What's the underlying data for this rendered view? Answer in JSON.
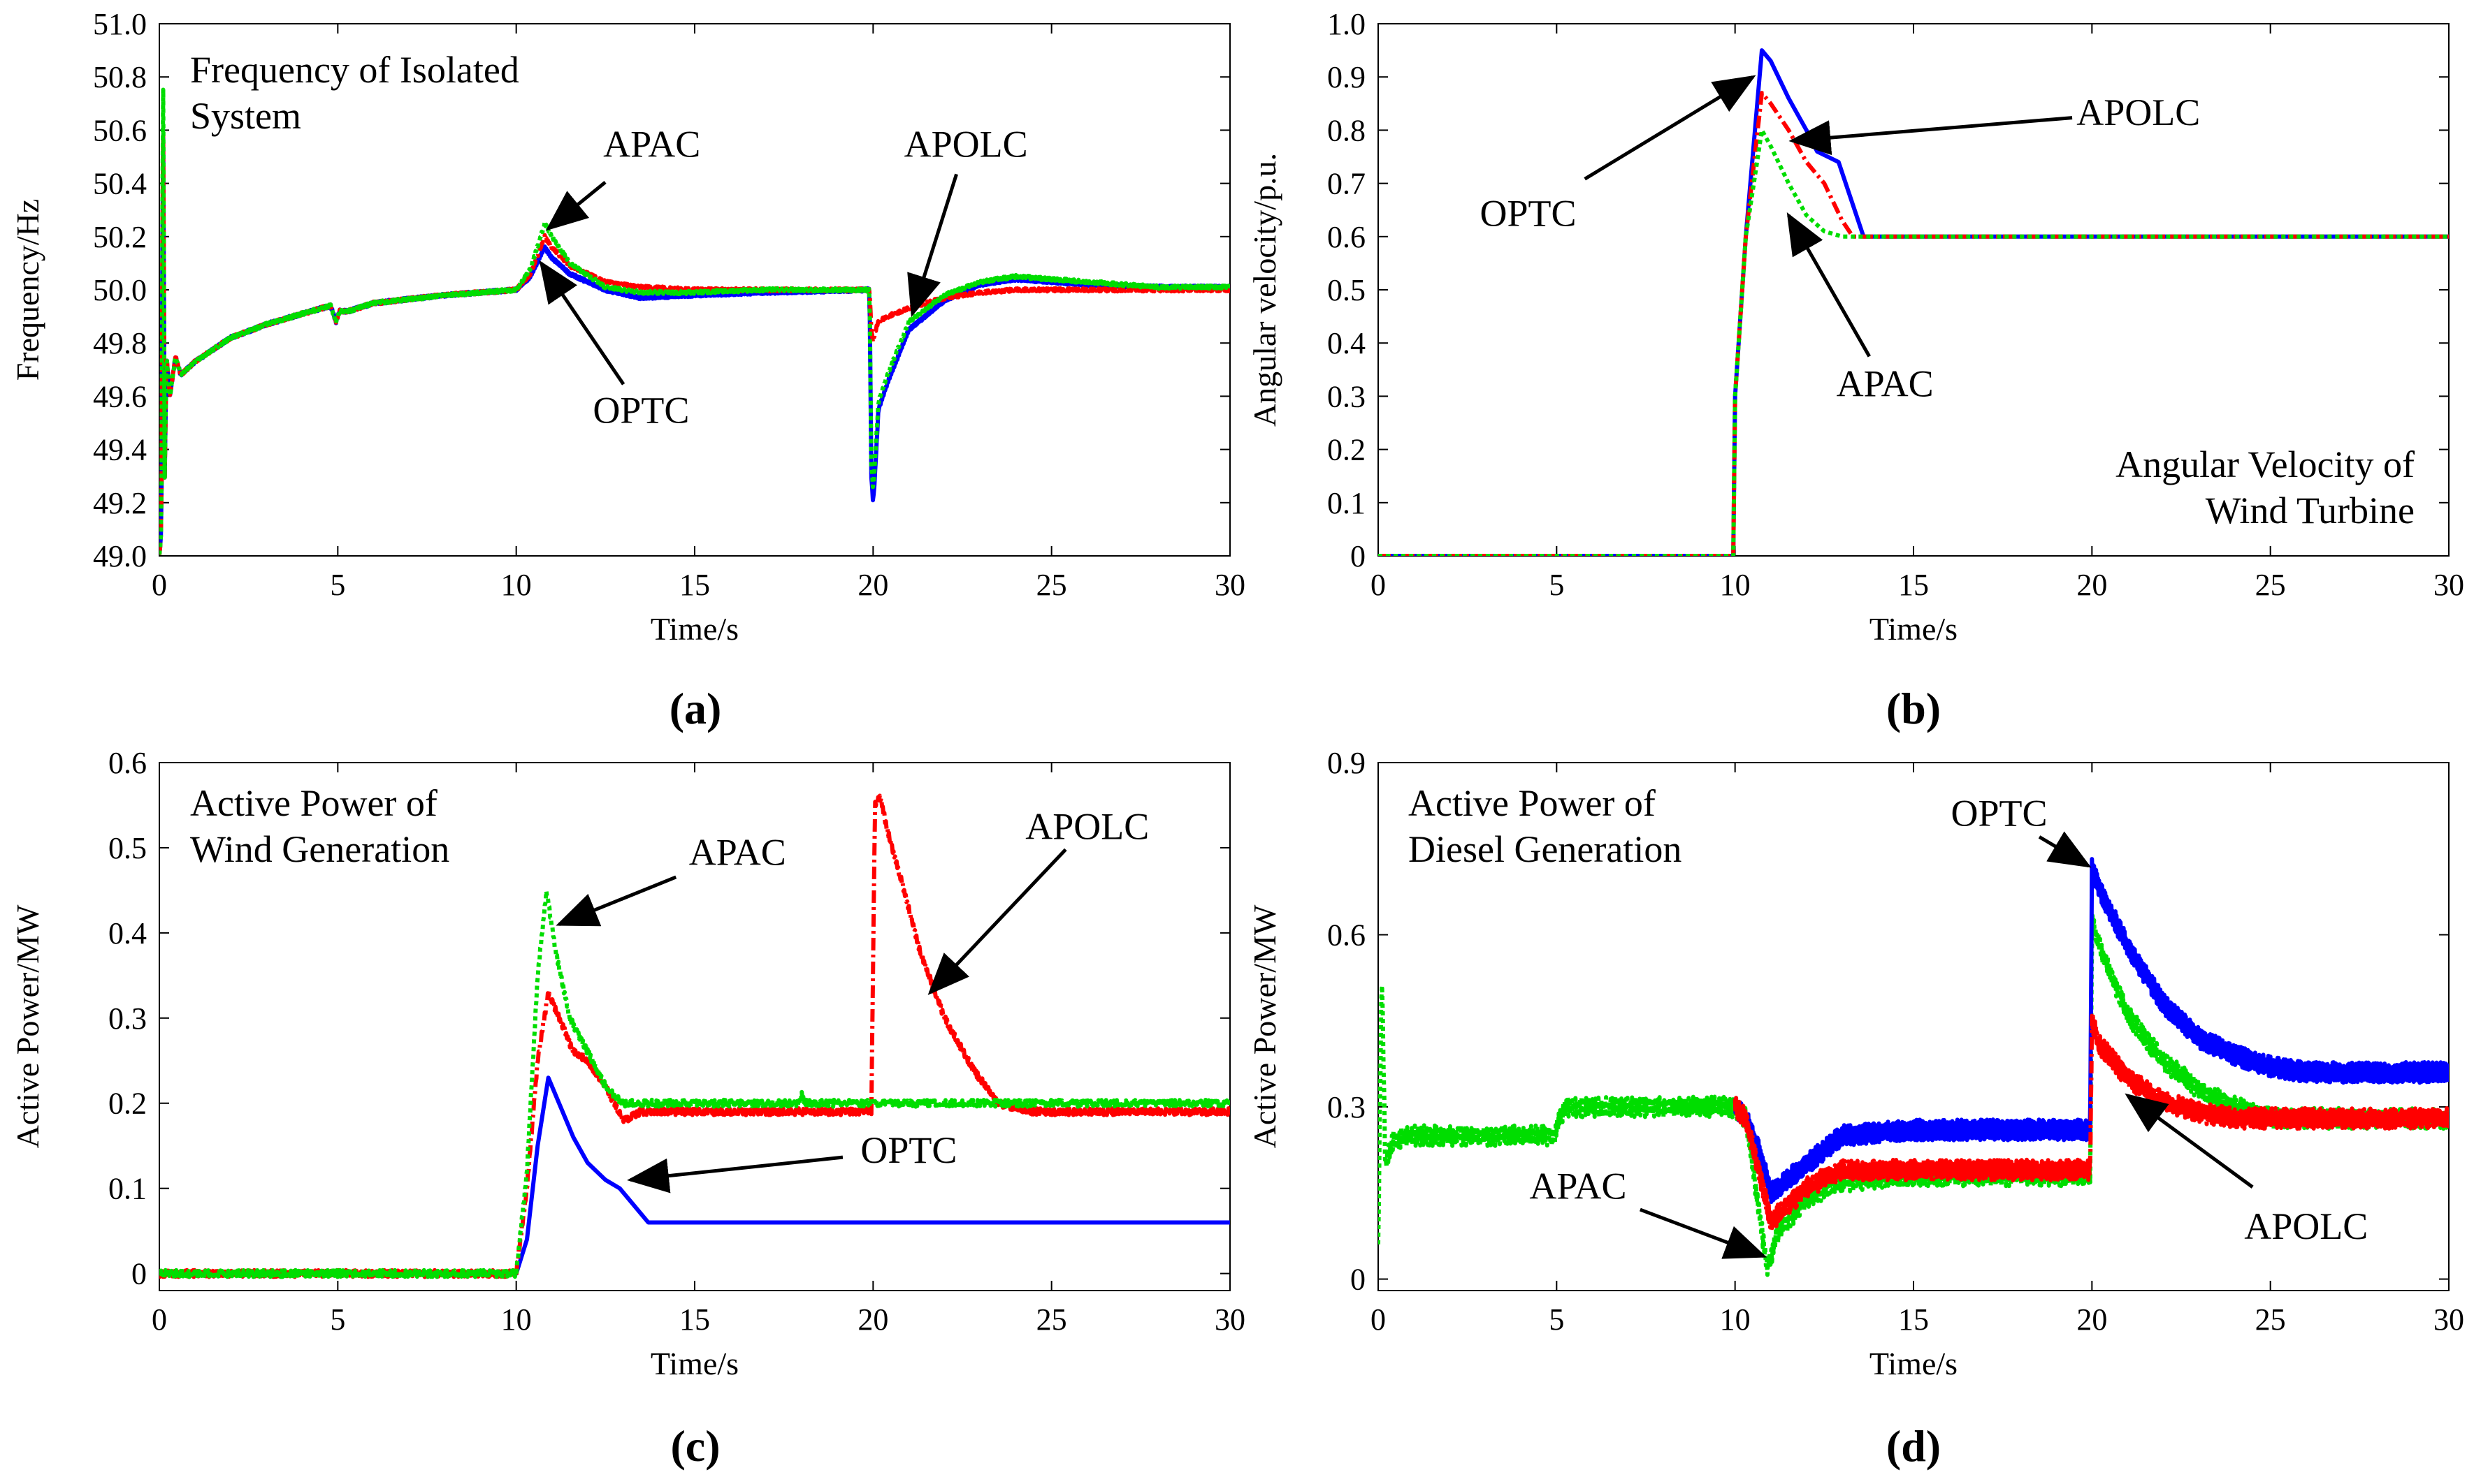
{
  "colors": {
    "OPTC": "#0000ff",
    "APAC": "#00dd00",
    "APOLC": "#ff0000",
    "axis": "#000000"
  },
  "chart_data": [
    {
      "panel_label": "(a)",
      "type": "line",
      "title": "Frequency of Isolated System",
      "xlabel": "Time/s",
      "ylabel": "Frequency/Hz",
      "xlim": [
        0,
        30
      ],
      "ylim": [
        49.0,
        51.0
      ],
      "xticks": [
        "0",
        "5",
        "10",
        "15",
        "20",
        "25",
        "30"
      ],
      "yticks": [
        "49.0",
        "49.2",
        "49.4",
        "49.6",
        "49.8",
        "50.0",
        "50.2",
        "50.4",
        "50.6",
        "50.8",
        "51.0"
      ],
      "series": [
        {
          "name": "OPTC",
          "color": "#0000ff",
          "noise": 0.006,
          "x": [
            0,
            0.06,
            0.1,
            0.15,
            0.2,
            0.3,
            0.45,
            0.6,
            1,
            2,
            3,
            4,
            4.8,
            4.95,
            5.05,
            5.3,
            6,
            8,
            10,
            10.4,
            10.8,
            11,
            11.5,
            12.5,
            13.5,
            15,
            17,
            19.9,
            19.95,
            20,
            20.05,
            20.15,
            20.4,
            21,
            22,
            23,
            24,
            26,
            28,
            30
          ],
          "y": [
            49.0,
            49.1,
            50.8,
            49.3,
            49.75,
            49.6,
            49.75,
            49.68,
            49.73,
            49.82,
            49.87,
            49.91,
            49.94,
            49.88,
            49.92,
            49.92,
            49.95,
            49.98,
            50.0,
            50.05,
            50.16,
            50.12,
            50.06,
            50.0,
            49.97,
            49.98,
            49.99,
            50.0,
            49.3,
            49.2,
            49.3,
            49.55,
            49.65,
            49.85,
            49.96,
            50.02,
            50.04,
            50.02,
            50.01,
            50.01
          ]
        },
        {
          "name": "APOLC",
          "color": "#ff0000",
          "noise": 0.006,
          "x": [
            0,
            0.06,
            0.1,
            0.15,
            0.2,
            0.3,
            0.45,
            0.6,
            1,
            2,
            3,
            4,
            4.8,
            4.95,
            5.05,
            5.3,
            6,
            8,
            10,
            10.4,
            10.8,
            11,
            11.5,
            12.5,
            13.5,
            15,
            17,
            19.9,
            19.95,
            20,
            20.05,
            20.15,
            20.4,
            21,
            22,
            23,
            24,
            26,
            28,
            30
          ],
          "y": [
            49.0,
            49.1,
            50.8,
            49.3,
            49.75,
            49.6,
            49.75,
            49.68,
            49.73,
            49.82,
            49.87,
            49.91,
            49.94,
            49.88,
            49.92,
            49.92,
            49.95,
            49.98,
            50.0,
            50.06,
            50.2,
            50.16,
            50.09,
            50.03,
            50.01,
            50.0,
            50.0,
            50.0,
            49.85,
            49.8,
            49.84,
            49.88,
            49.9,
            49.93,
            49.97,
            49.99,
            50.0,
            50.0,
            50.0,
            50.0
          ]
        },
        {
          "name": "APAC",
          "color": "#00dd00",
          "noise": 0.006,
          "x": [
            0,
            0.06,
            0.1,
            0.15,
            0.2,
            0.3,
            0.45,
            0.6,
            1,
            2,
            3,
            4,
            4.8,
            4.95,
            5.05,
            5.3,
            6,
            8,
            10,
            10.4,
            10.8,
            11,
            11.5,
            12.5,
            13.5,
            15,
            17,
            19.9,
            19.95,
            20,
            20.05,
            20.15,
            20.4,
            21,
            22,
            23,
            24,
            26,
            28,
            30
          ],
          "y": [
            49.0,
            49.1,
            51.0,
            49.3,
            49.75,
            49.6,
            49.75,
            49.68,
            49.73,
            49.82,
            49.87,
            49.91,
            49.94,
            49.88,
            49.92,
            49.92,
            49.95,
            49.98,
            50.0,
            50.08,
            50.25,
            50.2,
            50.1,
            50.01,
            49.99,
            49.99,
            50.0,
            50.0,
            49.35,
            49.25,
            49.35,
            49.58,
            49.68,
            49.88,
            49.98,
            50.03,
            50.05,
            50.03,
            50.01,
            50.01
          ]
        }
      ],
      "annotations": [
        {
          "text": "APAC",
          "tx": 13.8,
          "ty": 50.5,
          "ax": 10.9,
          "ay": 50.23
        },
        {
          "text": "OPTC",
          "tx": 13.5,
          "ty": 49.5,
          "ax": 10.7,
          "ay": 50.1
        },
        {
          "text": "APOLC",
          "tx": 22.6,
          "ty": 50.5,
          "ax": 21.1,
          "ay": 49.91
        }
      ]
    },
    {
      "panel_label": "(b)",
      "type": "line",
      "title": "Angular Velocity of Wind Turbine",
      "xlabel": "Time/s",
      "ylabel": "Angular velocity/p.u.",
      "xlim": [
        0,
        30
      ],
      "ylim": [
        0,
        1.0
      ],
      "xticks": [
        "0",
        "5",
        "10",
        "15",
        "20",
        "25",
        "30"
      ],
      "yticks": [
        "0",
        "0.1",
        "0.2",
        "0.3",
        "0.4",
        "0.5",
        "0.6",
        "0.7",
        "0.8",
        "0.9",
        "1.0"
      ],
      "series": [
        {
          "name": "OPTC",
          "color": "#0000ff",
          "noise": 0,
          "x": [
            0,
            9.95,
            10,
            10.3,
            10.75,
            11,
            11.5,
            12,
            12.3,
            12.6,
            12.9,
            13.2,
            13.6,
            30
          ],
          "y": [
            0,
            0,
            0.3,
            0.6,
            0.95,
            0.93,
            0.86,
            0.8,
            0.76,
            0.75,
            0.74,
            0.68,
            0.6,
            0.6
          ]
        },
        {
          "name": "APOLC",
          "color": "#ff0000",
          "noise": 0,
          "x": [
            0,
            9.95,
            10,
            10.3,
            10.75,
            11,
            11.5,
            12,
            12.5,
            13,
            13.3,
            30
          ],
          "y": [
            0,
            0,
            0.3,
            0.6,
            0.87,
            0.85,
            0.8,
            0.74,
            0.7,
            0.63,
            0.6,
            0.6
          ]
        },
        {
          "name": "APAC",
          "color": "#00dd00",
          "noise": 0,
          "x": [
            0,
            9.95,
            10,
            10.3,
            10.75,
            11,
            11.5,
            12,
            12.5,
            13,
            30
          ],
          "y": [
            0,
            0,
            0.3,
            0.6,
            0.8,
            0.77,
            0.7,
            0.64,
            0.61,
            0.6,
            0.6
          ]
        }
      ],
      "annotations": [
        {
          "text": "OPTC",
          "tx": 4.2,
          "ty": 0.62,
          "ax": 10.5,
          "ay": 0.9
        },
        {
          "text": "APOLC",
          "tx": 21.3,
          "ty": 0.81,
          "ax": 11.6,
          "ay": 0.78
        },
        {
          "text": "APAC",
          "tx": 14.2,
          "ty": 0.3,
          "ax": 11.5,
          "ay": 0.64
        }
      ]
    },
    {
      "panel_label": "(c)",
      "type": "line",
      "title": "Active Power of Wind Generation",
      "xlabel": "Time/s",
      "ylabel": "Active Power/MW",
      "xlim": [
        0,
        30
      ],
      "ylim": [
        -0.02,
        0.6
      ],
      "xticks": [
        "0",
        "5",
        "10",
        "15",
        "20",
        "25",
        "30"
      ],
      "yticks": [
        "0",
        "0.1",
        "0.2",
        "0.3",
        "0.4",
        "0.5",
        "0.6"
      ],
      "series": [
        {
          "name": "OPTC",
          "color": "#0000ff",
          "noise": 0,
          "x": [
            0,
            10,
            10.3,
            10.6,
            10.9,
            11.2,
            11.6,
            12,
            12.5,
            12.9,
            13.3,
            13.7,
            30
          ],
          "y": [
            0,
            0,
            0.04,
            0.15,
            0.23,
            0.2,
            0.16,
            0.13,
            0.11,
            0.1,
            0.08,
            0.06,
            0.06
          ]
        },
        {
          "name": "APOLC",
          "color": "#ff0000",
          "noise": 0.004,
          "x": [
            0,
            10,
            10.3,
            10.6,
            10.9,
            11.2,
            11.6,
            12,
            12.5,
            13,
            13.5,
            15,
            17,
            19.95,
            20.05,
            20.2,
            20.4,
            20.8,
            21.3,
            22,
            22.8,
            23.5,
            24.5,
            30
          ],
          "y": [
            0,
            0,
            0.1,
            0.25,
            0.33,
            0.3,
            0.26,
            0.25,
            0.22,
            0.18,
            0.19,
            0.19,
            0.19,
            0.19,
            0.55,
            0.56,
            0.52,
            0.46,
            0.38,
            0.3,
            0.24,
            0.2,
            0.19,
            0.19
          ]
        },
        {
          "name": "APAC",
          "color": "#00dd00",
          "noise": 0.004,
          "x": [
            0,
            10,
            10.3,
            10.6,
            10.85,
            11.1,
            11.5,
            12,
            12.5,
            13,
            13.5,
            17.9,
            18,
            18.1,
            20,
            30
          ],
          "y": [
            0,
            0,
            0.12,
            0.35,
            0.45,
            0.38,
            0.3,
            0.26,
            0.22,
            0.2,
            0.2,
            0.2,
            0.21,
            0.2,
            0.2,
            0.2
          ]
        }
      ],
      "annotations": [
        {
          "text": "APAC",
          "tx": 16.2,
          "ty": 0.48,
          "ax": 11.2,
          "ay": 0.41
        },
        {
          "text": "APOLC",
          "tx": 26.0,
          "ty": 0.51,
          "ax": 21.6,
          "ay": 0.33
        },
        {
          "text": "OPTC",
          "tx": 21.0,
          "ty": 0.13,
          "ax": 13.2,
          "ay": 0.11
        }
      ]
    },
    {
      "panel_label": "(d)",
      "type": "line",
      "title": "Active Power of Diesel Generation",
      "xlabel": "Time/s",
      "ylabel": "Active Power/MW",
      "xlim": [
        0,
        30
      ],
      "ylim": [
        -0.02,
        0.9
      ],
      "xticks": [
        "0",
        "5",
        "10",
        "15",
        "20",
        "25",
        "30"
      ],
      "yticks": [
        "0",
        "0.3",
        "0.6",
        "0.9"
      ],
      "series": [
        {
          "name": "APAC",
          "color": "#00dd00",
          "noise": 0.018,
          "x": [
            0,
            0.1,
            0.2,
            0.4,
            0.8,
            1.5,
            4.95,
            5.05,
            5.3,
            10,
            10.3,
            10.6,
            10.9,
            11.2,
            12,
            13,
            15,
            17,
            19.95,
            20,
            20.2,
            21,
            22,
            23,
            24,
            25,
            30
          ],
          "y": [
            0.05,
            0.55,
            0.2,
            0.24,
            0.25,
            0.25,
            0.25,
            0.28,
            0.3,
            0.3,
            0.28,
            0.15,
            0.02,
            0.08,
            0.14,
            0.17,
            0.18,
            0.18,
            0.18,
            0.62,
            0.58,
            0.46,
            0.38,
            0.33,
            0.3,
            0.28,
            0.28
          ]
        },
        {
          "name": "OPTC",
          "color": "#0000ff",
          "noise": 0.018,
          "x": [
            10,
            10.3,
            10.7,
            11,
            12,
            13,
            15,
            17,
            19.95,
            20,
            20.2,
            21,
            22,
            23,
            24,
            25,
            26,
            30
          ],
          "y": [
            0.3,
            0.28,
            0.22,
            0.15,
            0.2,
            0.25,
            0.26,
            0.26,
            0.26,
            0.72,
            0.68,
            0.58,
            0.48,
            0.42,
            0.39,
            0.37,
            0.36,
            0.36
          ]
        },
        {
          "name": "APOLC",
          "color": "#ff0000",
          "noise": 0.018,
          "x": [
            10,
            10.3,
            10.7,
            11,
            12,
            13,
            15,
            17,
            19.95,
            20,
            20.2,
            21,
            22,
            23,
            24,
            25,
            30
          ],
          "y": [
            0.3,
            0.28,
            0.18,
            0.1,
            0.16,
            0.19,
            0.19,
            0.19,
            0.19,
            0.45,
            0.41,
            0.35,
            0.31,
            0.29,
            0.28,
            0.28,
            0.28
          ]
        }
      ],
      "annotations": [
        {
          "text": "OPTC",
          "tx": 17.4,
          "ty": 0.79,
          "ax": 19.9,
          "ay": 0.72
        },
        {
          "text": "APAC",
          "tx": 5.6,
          "ty": 0.14,
          "ax": 10.8,
          "ay": 0.04
        },
        {
          "text": "APOLC",
          "tx": 26.0,
          "ty": 0.07,
          "ax": 21.0,
          "ay": 0.32
        }
      ]
    }
  ]
}
